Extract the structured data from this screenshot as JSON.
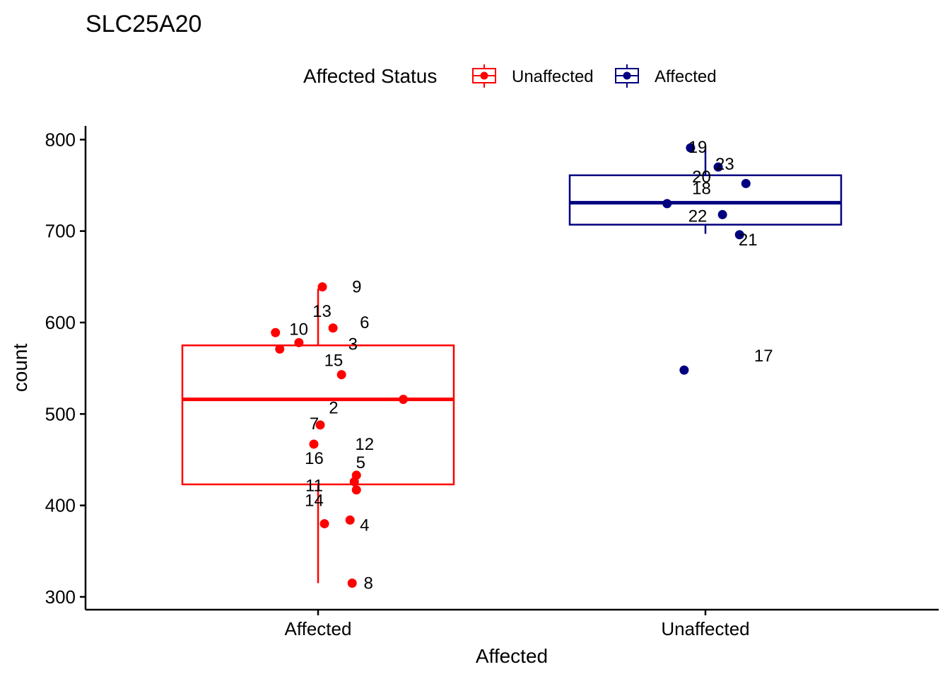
{
  "chart_data": {
    "type": "boxplot",
    "title": "SLC25A20",
    "xlabel": "Affected",
    "ylabel": "count",
    "ylim": [
      286,
      815
    ],
    "yticks": [
      300,
      400,
      500,
      600,
      700,
      800
    ],
    "categories": [
      "Affected",
      "Unaffected"
    ],
    "grid": false,
    "legend": {
      "title": "Affected Status",
      "position": "top",
      "entries": [
        {
          "label": "Unaffected",
          "color": "#FF0000"
        },
        {
          "label": "Affected",
          "color": "#000080"
        }
      ]
    },
    "boxes": [
      {
        "category": "Affected",
        "color": "#FF0000",
        "q1": 423,
        "median": 516,
        "q3": 575,
        "whisker_low": 315,
        "whisker_high": 637
      },
      {
        "category": "Unaffected",
        "color": "#000080",
        "q1": 707,
        "median": 731,
        "q3": 761,
        "whisker_low": 697,
        "whisker_high": 791
      }
    ],
    "points": [
      {
        "id": "2",
        "category": "Affected",
        "jitter": 0.4,
        "y": 516,
        "label_dx": 0.0,
        "label_dy": 20
      },
      {
        "id": "3",
        "category": "Affected",
        "jitter": -0.09,
        "y": 578,
        "label_dx": 0.05,
        "label_dy": 10
      },
      {
        "id": "4",
        "category": "Affected",
        "jitter": 0.03,
        "y": 380,
        "label_dx": 0.08,
        "label_dy": 10
      },
      {
        "id": "5",
        "category": "Affected",
        "jitter": 0.18,
        "y": 433,
        "label_dx": 0.07,
        "label_dy": -10
      },
      {
        "id": "6",
        "category": "Affected",
        "jitter": 0.07,
        "y": 594,
        "label_dx": 0.08,
        "label_dy": 0
      },
      {
        "id": "7",
        "category": "Affected",
        "jitter": 0.01,
        "y": 488,
        "label_dx": -0.05,
        "label_dy": 6
      },
      {
        "id": "8",
        "category": "Affected",
        "jitter": 0.16,
        "y": 315,
        "label_dx": 0.09,
        "label_dy": 8
      },
      {
        "id": "9",
        "category": "Affected",
        "jitter": 0.02,
        "y": 639,
        "label_dx": 0.06,
        "label_dy": 8
      },
      {
        "id": "10",
        "category": "Affected",
        "jitter": -0.18,
        "y": 571,
        "label_dx": -0.09,
        "label_dy": -20
      },
      {
        "id": "11",
        "category": "Affected",
        "jitter": 0.18,
        "y": 417,
        "label_dx": -0.05,
        "label_dy": 2
      },
      {
        "id": "12",
        "category": "Affected",
        "jitter": -0.02,
        "y": 467,
        "label_dx": 0.08,
        "label_dy": 8
      },
      {
        "id": "13",
        "category": "Affected",
        "jitter": -0.2,
        "y": 589,
        "label_dx": -0.03,
        "label_dy": -22
      },
      {
        "id": "14",
        "category": "Affected",
        "jitter": 0.15,
        "y": 384,
        "label_dx": -0.05,
        "label_dy": -20
      },
      {
        "id": "15",
        "category": "Affected",
        "jitter": 0.11,
        "y": 543,
        "label_dx": 0.0,
        "label_dy": -12
      },
      {
        "id": "16",
        "category": "Affected",
        "jitter": 0.17,
        "y": 426,
        "label_dx": -0.05,
        "label_dy": -25
      },
      {
        "id": "17",
        "category": "Unaffected",
        "jitter": -0.1,
        "y": 548,
        "label_dx": 0.1,
        "label_dy": -12
      },
      {
        "id": "18",
        "category": "Unaffected",
        "jitter": 0.19,
        "y": 752,
        "label_dx": -0.06,
        "label_dy": 15
      },
      {
        "id": "19",
        "category": "Unaffected",
        "jitter": -0.07,
        "y": 791,
        "label_dx": -0.07,
        "label_dy": 7
      },
      {
        "id": "20",
        "category": "Unaffected",
        "jitter": -0.18,
        "y": 730,
        "label_dx": -0.06,
        "label_dy": -30
      },
      {
        "id": "21",
        "category": "Unaffected",
        "jitter": 0.16,
        "y": 696,
        "label_dx": 0.06,
        "label_dy": 15
      },
      {
        "id": "22",
        "category": "Unaffected",
        "jitter": 0.08,
        "y": 718,
        "label_dx": -0.07,
        "label_dy": 10
      },
      {
        "id": "23",
        "category": "Unaffected",
        "jitter": 0.06,
        "y": 770,
        "label_dx": 0.0,
        "label_dy": 4
      }
    ]
  }
}
